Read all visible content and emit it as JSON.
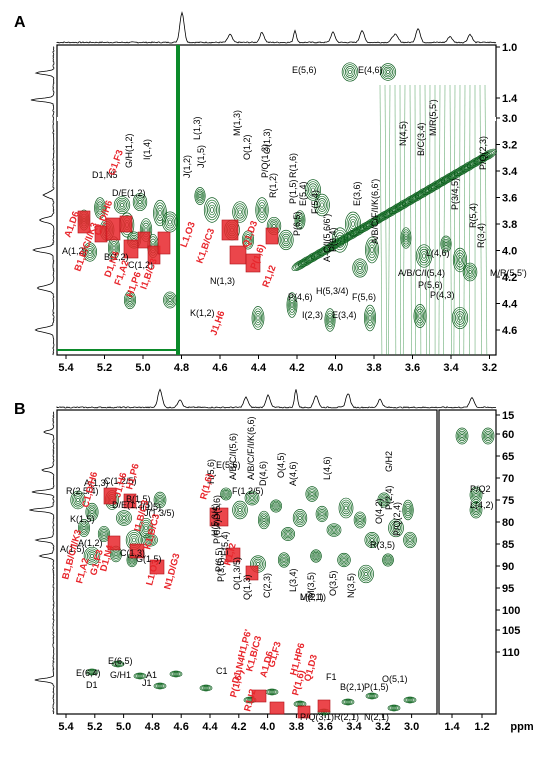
{
  "chart_data": [
    {
      "type": "scatter",
      "panel_label": "A",
      "description": "2D NMR contour panel (HSQC-TOCSY style)",
      "x_axis": {
        "range": [
          5.4,
          3.2
        ],
        "ticks": [
          "5.4",
          "5.2",
          "5.0",
          "4.8",
          "4.6",
          "4.4",
          "4.2",
          "4.0",
          "3.8",
          "3.6",
          "3.4",
          "3.2"
        ]
      },
      "y_axis": {
        "upper_ticks": [
          "1.0",
          "1.4"
        ],
        "lower_ticks": [
          "3.0",
          "3.2",
          "3.4",
          "3.6",
          "3.8",
          "4.0",
          "4.2",
          "4.4",
          "4.6"
        ]
      },
      "annotations_black": [
        "E(5,6)",
        "E(4,6)",
        "D1,N5",
        "D/E(1,2)",
        "G/H(1,2)",
        "I(1,4)",
        "J(1,2)",
        "J(1,5)",
        "L(1,3)",
        "M(1,3)",
        "O(1,2)",
        "O(1,3)",
        "P/Q(1,2)",
        "R(1,2)",
        "P(1,5)",
        "R(1,6)",
        "P(6,5)",
        "P(6,4)",
        "N(4,5)",
        "B/C(3,4)",
        "M/R(5,5')",
        "P/Q(2,3)",
        "E(3,6)",
        "E(5,4)",
        "F(5,4)",
        "A-C/I(5,6/6')",
        "A/B/C/F/I/K(6,6')",
        "P(3/4,5)",
        "R(5,4)",
        "R(3,4)",
        "L(4,6)",
        "M/R(5,5')",
        "A/B/C/I(5,4)",
        "P(5,6)",
        "P(4,3)",
        "P(4,6)",
        "H(5,3/4)",
        "F(5,6)",
        "E(3,4)",
        "I(2,3)",
        "A(1,2)",
        "B(1,2)",
        "C(1,2)",
        "K(1,2)",
        "N(1,3)"
      ],
      "annotations_red": [
        "G1,F3",
        "A1,D6",
        "C1,D/H6",
        "B1,B/C/I/K3",
        "D1,N4",
        "F1,A2",
        "H1,P6",
        "I1,B/C3",
        "L1,O3",
        "K1,B/C3",
        "J1,H6",
        "P(1,6)",
        "Q1,D3",
        "R1,I2"
      ]
    },
    {
      "type": "scatter",
      "panel_label": "B",
      "description": "2D NMR contour panel (HSQC-TOCSY style)",
      "x_axis": {
        "label": "ppm",
        "ticks": [
          "5.4",
          "5.2",
          "5.0",
          "4.8",
          "4.6",
          "4.4",
          "4.2",
          "4.0",
          "3.8",
          "3.6",
          "3.4",
          "3.2",
          "3.0",
          "1.4",
          "1.2"
        ]
      },
      "y_axis": {
        "ticks": [
          "15",
          "60",
          "65",
          "70",
          "75",
          "80",
          "85",
          "90",
          "95",
          "100",
          "105",
          "110"
        ]
      },
      "annotations_black": [
        "E(5,6)",
        "H(5,6)",
        "A/B/C/I(5,6)",
        "A/B/C/F/I/K(6,6)",
        "D(4,6)",
        "O(4,5)",
        "A(4,6)",
        "L(4,6)",
        "G/H2",
        "P(2,4)",
        "O(4,2)",
        "P/Q(2,4)",
        "R(2,5/4)",
        "A(1,3)",
        "C(1,2/5)",
        "D/E(1,2/5)",
        "B(1,5)",
        "I(1,5)",
        "J(1,3/5)",
        "K(1,5)",
        "A(1,5)",
        "A(1,2)",
        "C(1,3)",
        "G(1,5)",
        "F(1,2/5)",
        "D(5,6)",
        "H(5,3/4)",
        "P(6,4)",
        "E(5,4)",
        "P(6,5)",
        "P(3,5)",
        "O(1,3/5)",
        "Q(1,3)",
        "C(2,3)",
        "L(3,4)",
        "M(3,5)",
        "O(3,5)",
        "N(3,5)",
        "R(3,5)",
        "P/Q2",
        "L(4,2)",
        "E(6,5)",
        "E(6,4)",
        "G/H1",
        "A1",
        "D1",
        "J1",
        "C1",
        "F1",
        "B(2,1)",
        "P(1,5)",
        "O(5,1)",
        "P/Q(3,1)",
        "R(2,1)",
        "N(2,1)",
        "L(2,1)",
        "M(2,1)"
      ],
      "annotations_red": [
        "C1,D/H6",
        "J1,H6",
        "H1,P6",
        "R(1,6)",
        "I1,B/C3",
        "K1,B/C3",
        "D1,N4",
        "B1,B/C/I/K3",
        "G1,F3",
        "F1,A2",
        "L1,O3",
        "N1,D/G3",
        "R1,I2",
        "H1,P6'",
        "D1,N4",
        "K1,B/C3",
        "A1,D6",
        "G1,F3",
        "H1,HP6",
        "P(1,6')",
        "P(1,6)",
        "R1,I2",
        "Q1,D3"
      ]
    }
  ]
}
